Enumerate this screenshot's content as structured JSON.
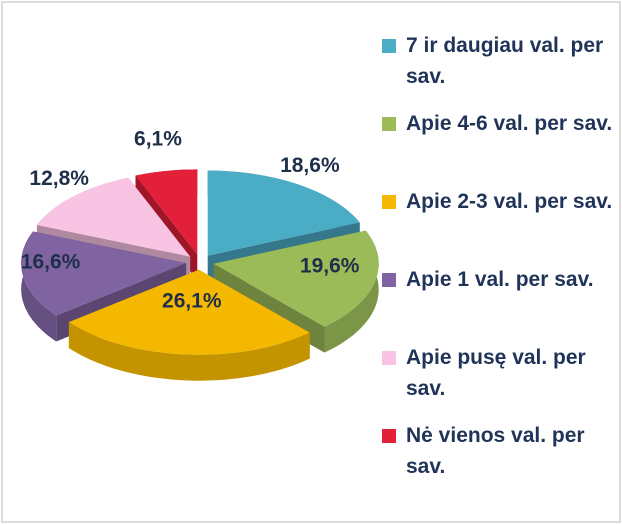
{
  "chart_data": {
    "type": "pie3d",
    "categories": [
      "7 ir daugiau val. per sav.",
      "Apie 4-6 val. per sav.",
      "Apie 2-3 val. per sav.",
      "Apie 1 val. per sav.",
      "Apie pusę val. per sav.",
      "Nė vienos val. per sav."
    ],
    "values": [
      18.6,
      19.6,
      26.1,
      16.6,
      12.8,
      6.1
    ],
    "value_labels": [
      "18,6%",
      "19,6%",
      "26,1%",
      "16,6%",
      "12,8%",
      "6,1%"
    ],
    "colors": [
      "#4bacc6",
      "#9bbb59",
      "#f5b800",
      "#8064a2",
      "#f9c4e4",
      "#e3203a"
    ],
    "legend": "right"
  }
}
